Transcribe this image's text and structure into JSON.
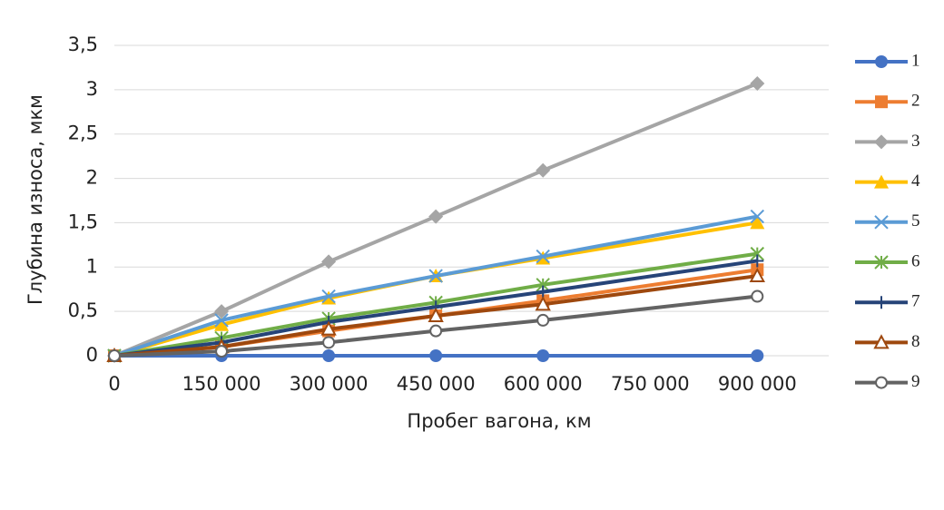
{
  "chart_data": {
    "type": "line",
    "xlabel": "Пробег вагона, км",
    "ylabel": "Глубина износа, мкм",
    "x": [
      0,
      150000,
      300000,
      450000,
      600000,
      900000
    ],
    "xlim": [
      0,
      1000000
    ],
    "xticks": [
      0,
      {
        "value": 150000,
        "label": "150 000"
      },
      {
        "value": 300000,
        "label": "300 000"
      },
      {
        "value": 450000,
        "label": "450 000"
      },
      {
        "value": 600000,
        "label": "600 000"
      },
      {
        "value": 750000,
        "label": "750 000"
      },
      {
        "value": 900000,
        "label": "900 000"
      }
    ],
    "ylim": [
      0,
      3.5
    ],
    "yticks": [
      0,
      {
        "value": 0.5,
        "label": "0,5"
      },
      1,
      {
        "value": 1.5,
        "label": "1,5"
      },
      2,
      {
        "value": 2.5,
        "label": "2,5"
      },
      3,
      {
        "value": 3.5,
        "label": "3,5"
      }
    ],
    "grid": true,
    "legend": "right",
    "series": [
      {
        "name": "1",
        "color": "#4472c4",
        "marker": "circle",
        "values": [
          0,
          0,
          0,
          0,
          0,
          0
        ]
      },
      {
        "name": "2",
        "color": "#ed7d31",
        "marker": "square",
        "values": [
          0,
          0.1,
          0.28,
          0.45,
          0.62,
          0.97
        ]
      },
      {
        "name": "3",
        "color": "#a5a5a5",
        "marker": "diamond",
        "values": [
          0,
          0.5,
          1.06,
          1.57,
          2.09,
          3.07
        ]
      },
      {
        "name": "4",
        "color": "#ffc000",
        "marker": "triangle",
        "values": [
          0,
          0.35,
          0.65,
          0.9,
          1.1,
          1.5
        ]
      },
      {
        "name": "5",
        "color": "#5b9bd5",
        "marker": "x",
        "values": [
          0,
          0.4,
          0.67,
          0.9,
          1.12,
          1.57
        ]
      },
      {
        "name": "6",
        "color": "#70ad47",
        "marker": "asterisk",
        "values": [
          0,
          0.2,
          0.42,
          0.6,
          0.8,
          1.15
        ]
      },
      {
        "name": "7",
        "color": "#264478",
        "marker": "plus",
        "values": [
          0,
          0.15,
          0.38,
          0.55,
          0.72,
          1.07
        ]
      },
      {
        "name": "8",
        "color": "#9e480e",
        "marker": "open-triangle",
        "values": [
          0,
          0.1,
          0.3,
          0.45,
          0.58,
          0.9
        ]
      },
      {
        "name": "9",
        "color": "#636363",
        "marker": "open-circle",
        "values": [
          0,
          0.05,
          0.15,
          0.28,
          0.4,
          0.67
        ]
      }
    ]
  }
}
